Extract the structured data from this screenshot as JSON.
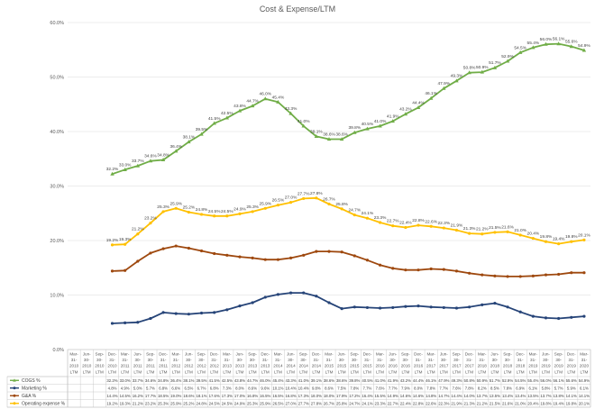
{
  "chart_data": {
    "type": "line",
    "title": "Cost & Expense/LTM",
    "xlabel": "",
    "ylabel": "",
    "ylim": [
      0,
      60
    ],
    "y_ticks": [
      "0.0%",
      "10.0%",
      "20.0%",
      "30.0%",
      "40.0%",
      "50.0%",
      "60.0%"
    ],
    "grid": true,
    "legend": "bottom-table",
    "categories": [
      "Mar-31-2010 LTM",
      "Jun-30-2010 LTM",
      "Sep-30-2010 LTM",
      "Dec-31-2010 LTM",
      "Mar-31-2011 LTM",
      "Jun-30-2011 LTM",
      "Sep-30-2011 LTM",
      "Dec-31-2011 LTM",
      "Mar-31-2012 LTM",
      "Jun-30-2012 LTM",
      "Sep-30-2012 LTM",
      "Dec-31-2012 LTM",
      "Mar-31-2013 LTM",
      "Jun-30-2013 LTM",
      "Sep-30-2013 LTM",
      "Dec-31-2013 LTM",
      "Mar-31-2014 LTM",
      "Jun-30-2014 LTM",
      "Sep-30-2014 LTM",
      "Dec-31-2014 LTM",
      "Mar-31-2015 LTM",
      "Jun-30-2015 LTM",
      "Sep-30-2015 LTM",
      "Dec-31-2015 LTM",
      "Mar-31-2016 LTM",
      "Jun-30-2016 LTM",
      "Sep-30-2016 LTM",
      "Dec-31-2016 LTM",
      "Mar-31-2017 LTM",
      "Jun-30-2017 LTM",
      "Sep-30-2017 LTM",
      "Dec-31-2017 LTM",
      "Mar-31-2018 LTM",
      "Jun-30-2018 LTM",
      "Sep-30-2018 LTM",
      "Dec-31-2018 LTM",
      "Mar-31-2019 LTM",
      "Jun-30-2019 LTM",
      "Sep-30-2019 LTM",
      "Dec-31-2019 LTM",
      "Mar-31-2020 LTM"
    ],
    "category_lines": [
      [
        "Mar-",
        "31-",
        "2010",
        "LTM"
      ],
      [
        "Jun-",
        "30-",
        "2010",
        "LTM"
      ],
      [
        "Sep-",
        "30-",
        "2010",
        "LTM"
      ],
      [
        "Dec-",
        "31-",
        "2010",
        "LTM"
      ],
      [
        "Mar-",
        "31-",
        "2011",
        "LTM"
      ],
      [
        "Jun-",
        "30-",
        "2011",
        "LTM"
      ],
      [
        "Sep-",
        "30-",
        "2011",
        "LTM"
      ],
      [
        "Dec-",
        "31-",
        "2011",
        "LTM"
      ],
      [
        "Mar-",
        "31-",
        "2012",
        "LTM"
      ],
      [
        "Jun-",
        "30-",
        "2012",
        "LTM"
      ],
      [
        "Sep-",
        "30-",
        "2012",
        "LTM"
      ],
      [
        "Dec-",
        "31-",
        "2012",
        "LTM"
      ],
      [
        "Mar-",
        "31-",
        "2013",
        "LTM"
      ],
      [
        "Jun-",
        "30-",
        "2013",
        "LTM"
      ],
      [
        "Sep-",
        "30-",
        "2013",
        "LTM"
      ],
      [
        "Dec-",
        "31-",
        "2013",
        "LTM"
      ],
      [
        "Mar-",
        "31-",
        "2014",
        "LTM"
      ],
      [
        "Jun-",
        "30-",
        "2014",
        "LTM"
      ],
      [
        "Sep-",
        "30-",
        "2014",
        "LTM"
      ],
      [
        "Dec-",
        "31-",
        "2014",
        "LTM"
      ],
      [
        "Mar-",
        "31-",
        "2015",
        "LTM"
      ],
      [
        "Jun-",
        "30-",
        "2015",
        "LTM"
      ],
      [
        "Sep-",
        "30-",
        "2015",
        "LTM"
      ],
      [
        "Dec-",
        "31-",
        "2015",
        "LTM"
      ],
      [
        "Mar-",
        "31-",
        "2016",
        "LTM"
      ],
      [
        "Jun-",
        "30-",
        "2016",
        "LTM"
      ],
      [
        "Sep-",
        "30-",
        "2016",
        "LTM"
      ],
      [
        "Dec-",
        "31-",
        "2016",
        "LTM"
      ],
      [
        "Mar-",
        "31-",
        "2017",
        "LTM"
      ],
      [
        "Jun-",
        "30-",
        "2017",
        "LTM"
      ],
      [
        "Sep-",
        "30-",
        "2017",
        "LTM"
      ],
      [
        "Dec-",
        "31-",
        "2017",
        "LTM"
      ],
      [
        "Mar-",
        "31-",
        "2018",
        "LTM"
      ],
      [
        "Jun-",
        "30-",
        "2018",
        "LTM"
      ],
      [
        "Sep-",
        "30-",
        "2018",
        "LTM"
      ],
      [
        "Dec-",
        "31-",
        "2018",
        "LTM"
      ],
      [
        "Mar-",
        "31-",
        "2019",
        "LTM"
      ],
      [
        "Jun-",
        "30-",
        "2019",
        "LTM"
      ],
      [
        "Sep-",
        "30-",
        "2019",
        "LTM"
      ],
      [
        "Dec-",
        "31-",
        "2019",
        "LTM"
      ],
      [
        "Mar-",
        "31-",
        "2020",
        "LTM"
      ]
    ],
    "series": [
      {
        "name": "COGS %",
        "color": "#70ad47",
        "marker": "triangle",
        "values": [
          null,
          null,
          null,
          32.2,
          33.0,
          33.7,
          34.6,
          34.8,
          36.4,
          38.1,
          39.5,
          41.5,
          42.5,
          43.8,
          44.7,
          46.0,
          45.4,
          43.3,
          41.0,
          39.1,
          38.6,
          38.6,
          39.8,
          40.5,
          41.0,
          41.9,
          43.2,
          44.4,
          46.1,
          47.9,
          49.3,
          50.8,
          50.9,
          51.7,
          52.9,
          54.5,
          55.4,
          56.0,
          56.1,
          55.6,
          54.9
        ]
      },
      {
        "name": "Marketing %",
        "color": "#264478",
        "marker": "circle",
        "values": [
          null,
          null,
          null,
          4.8,
          4.9,
          5.0,
          5.7,
          6.8,
          6.6,
          6.5,
          6.7,
          6.8,
          7.3,
          8.0,
          8.6,
          9.6,
          10.1,
          10.4,
          10.4,
          9.8,
          8.6,
          7.5,
          7.8,
          7.7,
          7.6,
          7.7,
          7.9,
          8.0,
          7.8,
          7.7,
          7.6,
          7.8,
          8.2,
          8.5,
          7.8,
          6.9,
          6.1,
          5.8,
          5.7,
          5.9,
          6.1
        ]
      },
      {
        "name": "G&A %",
        "color": "#9e480e",
        "marker": "circle",
        "values": [
          null,
          null,
          null,
          14.4,
          14.5,
          16.2,
          17.7,
          18.5,
          19.0,
          18.6,
          18.1,
          17.6,
          17.3,
          17.0,
          16.8,
          16.5,
          16.5,
          16.8,
          17.3,
          18.0,
          18.0,
          17.9,
          17.2,
          16.4,
          15.5,
          14.9,
          14.6,
          14.6,
          14.8,
          14.7,
          14.4,
          14.0,
          13.7,
          13.5,
          13.4,
          13.4,
          13.5,
          13.7,
          13.8,
          14.1,
          14.1
        ]
      },
      {
        "name": "Operating expense %",
        "color": "#ffc000",
        "marker": "circle",
        "values": [
          null,
          null,
          null,
          19.2,
          19.3,
          21.2,
          23.2,
          25.3,
          25.9,
          25.2,
          24.8,
          24.5,
          24.5,
          24.9,
          25.3,
          25.9,
          26.5,
          27.0,
          27.7,
          27.8,
          26.7,
          25.8,
          24.7,
          24.1,
          23.3,
          22.7,
          22.4,
          22.8,
          22.6,
          22.3,
          21.9,
          21.3,
          21.2,
          21.5,
          21.6,
          21.0,
          20.4,
          19.8,
          19.4,
          19.8,
          20.1
        ]
      }
    ]
  }
}
